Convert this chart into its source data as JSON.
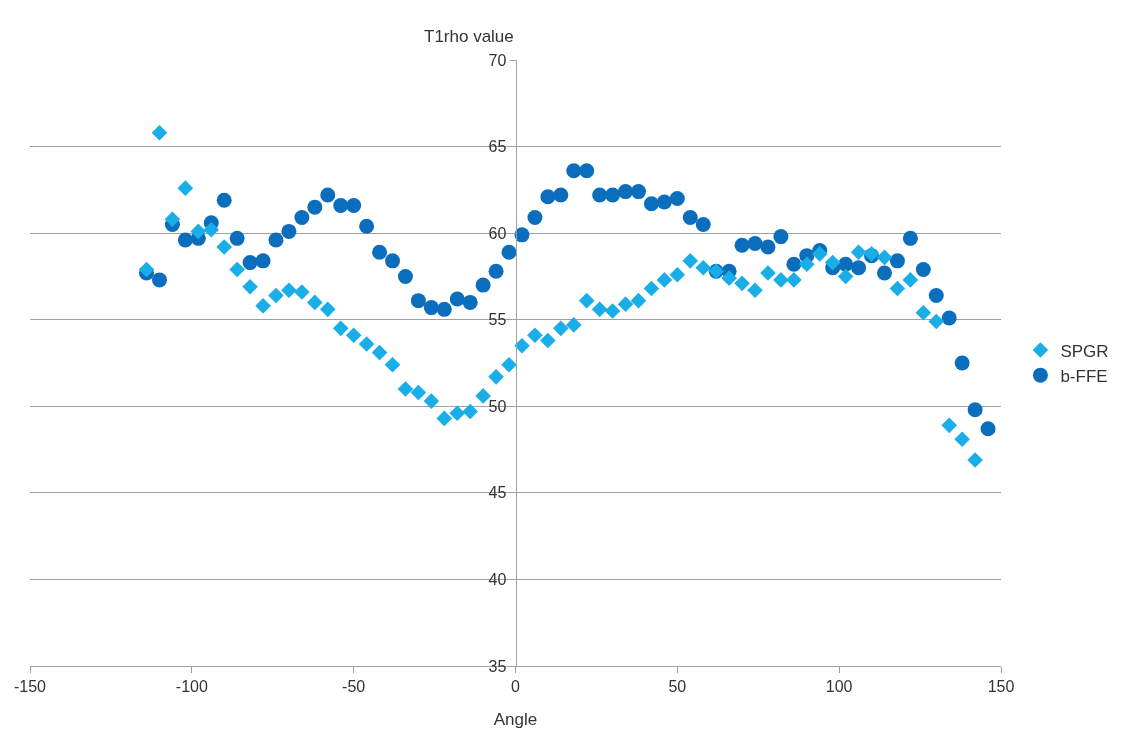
{
  "chart_data": {
    "type": "scatter",
    "xlabel": "Angle",
    "ylabel": "T1rho value",
    "xlim": [
      -150,
      150
    ],
    "xticks": [
      -150,
      -100,
      -50,
      0,
      50,
      100,
      150
    ],
    "ylim": [
      35,
      70
    ],
    "yticks": [
      35,
      40,
      45,
      50,
      55,
      60,
      65,
      70
    ],
    "grid": "y",
    "legend": "right",
    "series": [
      {
        "name": "SPGR",
        "color": "#19aee8",
        "marker": "diamond",
        "x": [
          -114,
          -110,
          -106,
          -102,
          -98,
          -94,
          -90,
          -86,
          -82,
          -78,
          -74,
          -70,
          -66,
          -62,
          -58,
          -54,
          -50,
          -46,
          -42,
          -38,
          -34,
          -30,
          -26,
          -22,
          -18,
          -14,
          -10,
          -6,
          -2,
          2,
          6,
          10,
          14,
          18,
          22,
          26,
          30,
          34,
          38,
          42,
          46,
          50,
          54,
          58,
          62,
          66,
          70,
          74,
          78,
          82,
          86,
          90,
          94,
          98,
          102,
          106,
          110,
          114,
          118,
          122,
          126,
          130,
          134,
          138,
          142
        ],
        "values": [
          57.9,
          65.8,
          60.8,
          62.6,
          60.1,
          60.2,
          59.2,
          57.9,
          56.9,
          55.8,
          56.4,
          56.7,
          56.6,
          56.0,
          55.6,
          54.5,
          54.1,
          53.6,
          53.1,
          52.4,
          51.0,
          50.8,
          50.3,
          49.3,
          49.6,
          49.7,
          50.6,
          51.7,
          52.4,
          53.5,
          54.1,
          53.8,
          54.5,
          54.7,
          56.1,
          55.6,
          55.5,
          55.9,
          56.1,
          56.8,
          57.3,
          57.6,
          58.4,
          58.0,
          57.8,
          57.4,
          57.1,
          56.7,
          57.7,
          57.3,
          57.3,
          58.2,
          58.8,
          58.3,
          57.5,
          58.9,
          58.8,
          58.6,
          56.8,
          57.3,
          55.4,
          54.9,
          48.9,
          48.1,
          46.9
        ]
      },
      {
        "name": "b-FFE",
        "color": "#0b6ebd",
        "marker": "circle",
        "x": [
          -114,
          -110,
          -106,
          -102,
          -98,
          -94,
          -90,
          -86,
          -82,
          -78,
          -74,
          -70,
          -66,
          -62,
          -58,
          -54,
          -50,
          -46,
          -42,
          -38,
          -34,
          -30,
          -26,
          -22,
          -18,
          -14,
          -10,
          -6,
          -2,
          2,
          6,
          10,
          14,
          18,
          22,
          26,
          30,
          34,
          38,
          42,
          46,
          50,
          54,
          58,
          62,
          66,
          70,
          74,
          78,
          82,
          86,
          90,
          94,
          98,
          102,
          106,
          110,
          114,
          118,
          122,
          126,
          130,
          134,
          138,
          142,
          146
        ],
        "values": [
          57.7,
          57.3,
          60.5,
          59.6,
          59.7,
          60.6,
          61.9,
          59.7,
          58.3,
          58.4,
          59.6,
          60.1,
          60.9,
          61.5,
          62.2,
          61.6,
          61.6,
          60.4,
          58.9,
          58.4,
          57.5,
          56.1,
          55.7,
          55.6,
          56.2,
          56.0,
          57.0,
          57.8,
          58.9,
          59.9,
          60.9,
          62.1,
          62.2,
          63.6,
          63.6,
          62.2,
          62.2,
          62.4,
          62.4,
          61.7,
          61.8,
          62.0,
          60.9,
          60.5,
          57.8,
          57.8,
          59.3,
          59.4,
          59.2,
          59.8,
          58.2,
          58.7,
          59.0,
          58.0,
          58.2,
          58.0,
          58.7,
          57.7,
          58.4,
          59.7,
          57.9,
          56.4,
          55.1,
          52.5,
          49.8,
          48.7
        ]
      }
    ]
  }
}
